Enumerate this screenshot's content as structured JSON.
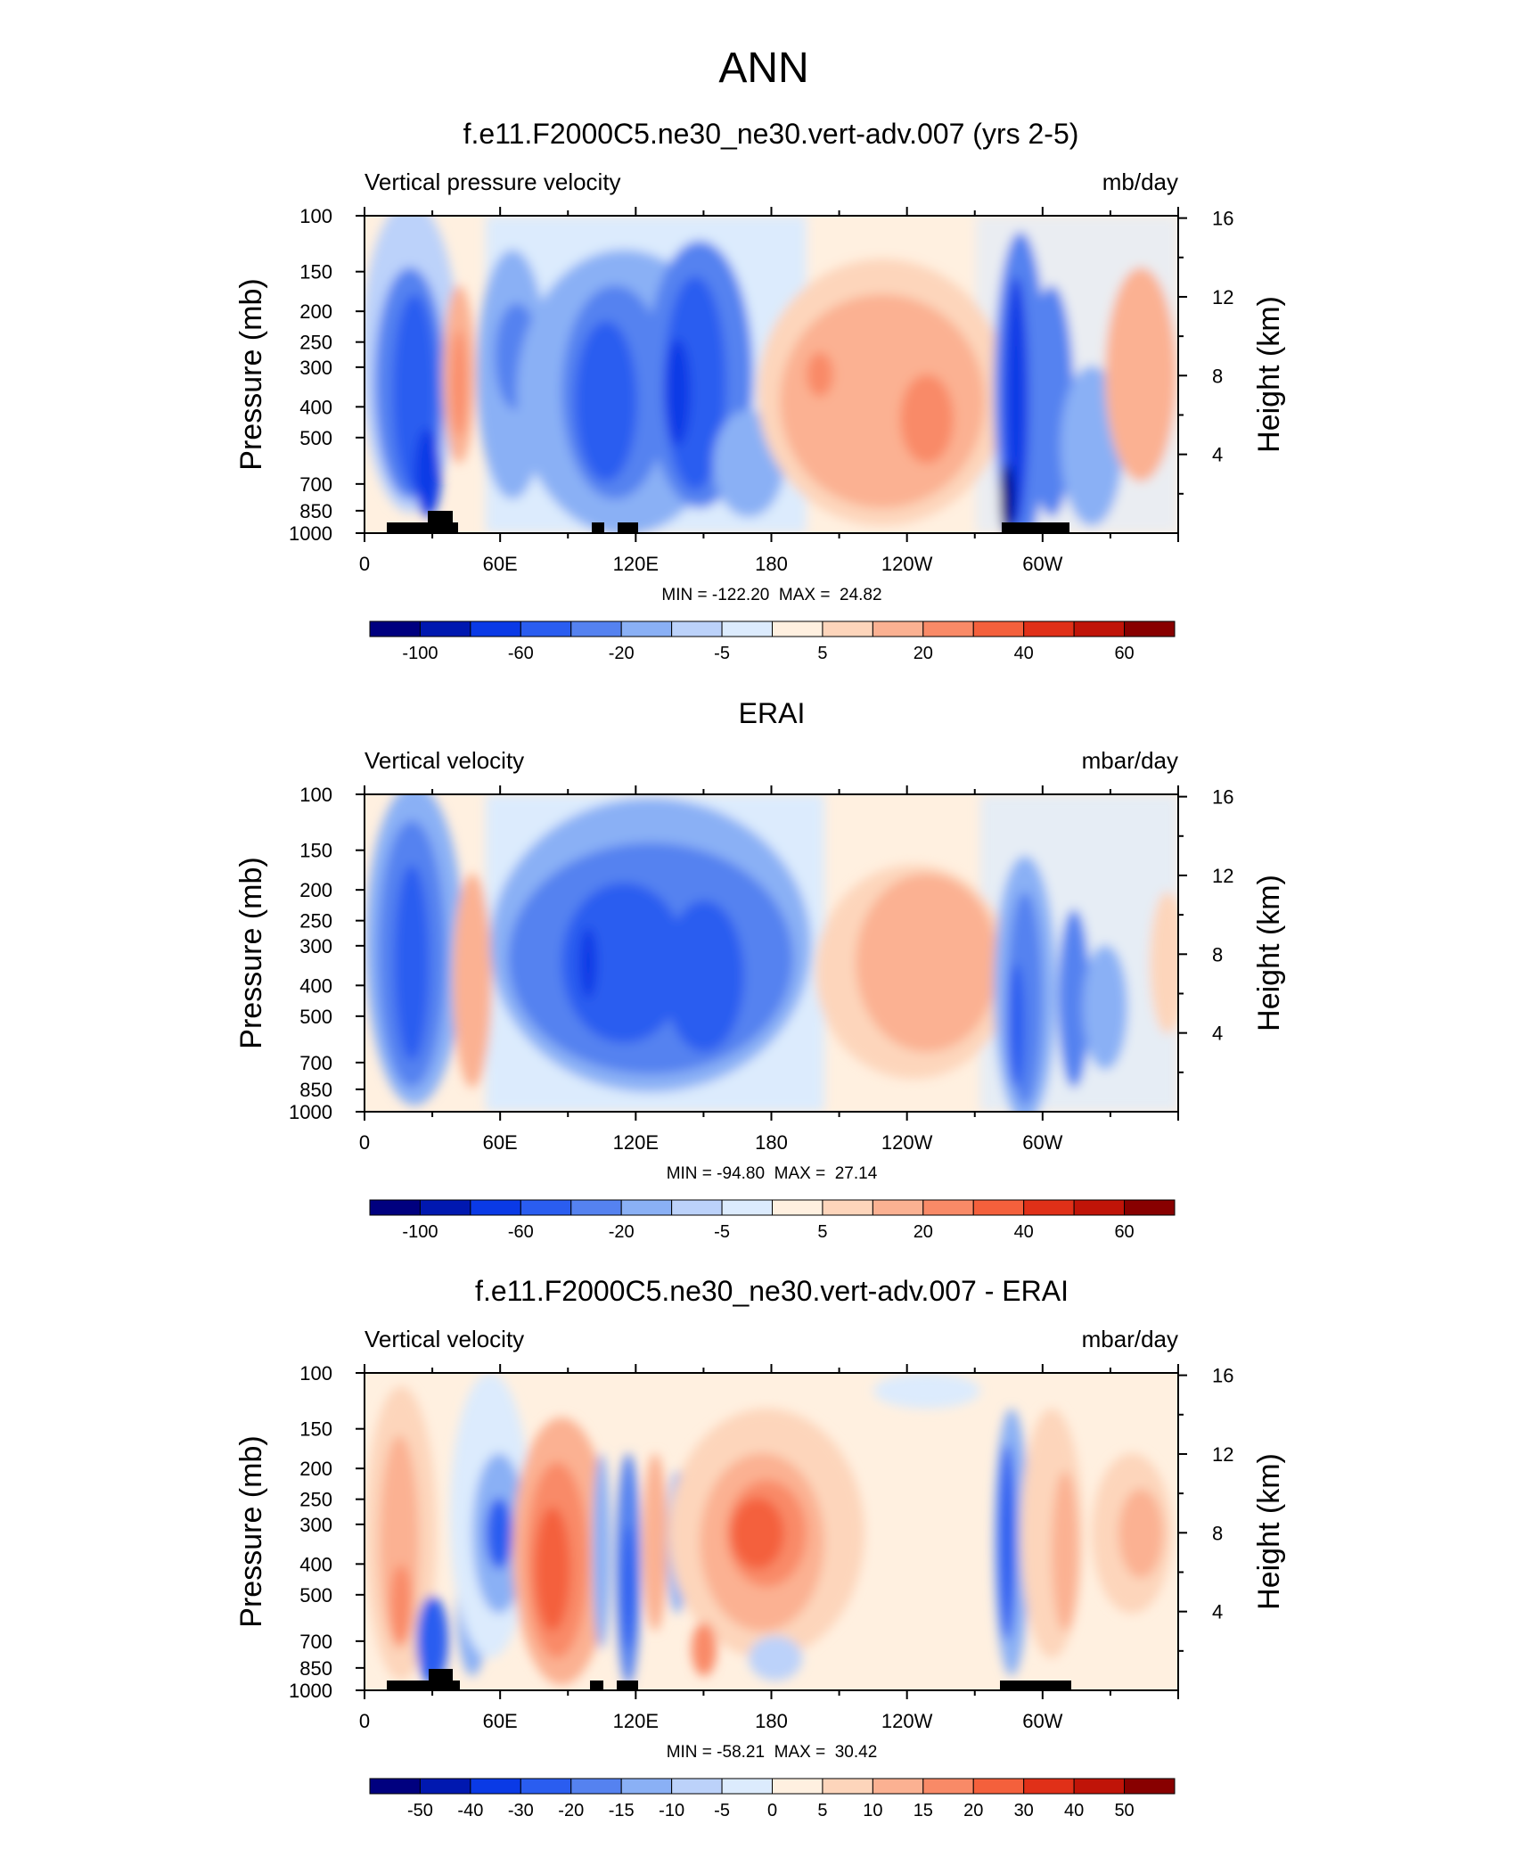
{
  "figure": {
    "title": "ANN"
  },
  "chart_data": [
    {
      "type": "heatmap",
      "title": "f.e11.F2000C5.ne30_ne30.vert-adv.007 (yrs 2-5)",
      "left_label": "Vertical pressure velocity",
      "right_label": "mb/day",
      "ylabel": "Pressure (mb)",
      "ylabel_right": "Height (km)",
      "x_ticks": [
        "0",
        "60E",
        "120E",
        "180",
        "120W",
        "60W"
      ],
      "y_ticks": [
        "100",
        "150",
        "200",
        "250",
        "300",
        "400",
        "500",
        "700",
        "850",
        "1000"
      ],
      "y_right_ticks": [
        "16",
        "12",
        "8",
        "4"
      ],
      "stats": "MIN = -122.20  MAX =  24.82",
      "colorbar_labels": [
        "-100",
        "-60",
        "-20",
        "-5",
        "5",
        "20",
        "40",
        "60"
      ],
      "colorbar_levels": [
        -100,
        -80,
        -60,
        -40,
        -20,
        -10,
        -5,
        0,
        5,
        10,
        20,
        30,
        40,
        50,
        60
      ],
      "land_mask": true
    },
    {
      "type": "heatmap",
      "title": "ERAI",
      "left_label": "Vertical velocity",
      "right_label": "mbar/day",
      "ylabel": "Pressure (mb)",
      "ylabel_right": "Height (km)",
      "x_ticks": [
        "0",
        "60E",
        "120E",
        "180",
        "120W",
        "60W"
      ],
      "y_ticks": [
        "100",
        "150",
        "200",
        "250",
        "300",
        "400",
        "500",
        "700",
        "850",
        "1000"
      ],
      "y_right_ticks": [
        "16",
        "12",
        "8",
        "4"
      ],
      "stats": "MIN = -94.80  MAX =  27.14",
      "colorbar_labels": [
        "-100",
        "-60",
        "-20",
        "-5",
        "5",
        "20",
        "40",
        "60"
      ],
      "colorbar_levels": [
        -100,
        -80,
        -60,
        -40,
        -20,
        -10,
        -5,
        0,
        5,
        10,
        20,
        30,
        40,
        50,
        60
      ],
      "land_mask": false
    },
    {
      "type": "heatmap",
      "title": "f.e11.F2000C5.ne30_ne30.vert-adv.007 - ERAI",
      "left_label": "Vertical velocity",
      "right_label": "mbar/day",
      "ylabel": "Pressure (mb)",
      "ylabel_right": "Height (km)",
      "x_ticks": [
        "0",
        "60E",
        "120E",
        "180",
        "120W",
        "60W"
      ],
      "y_ticks": [
        "100",
        "150",
        "200",
        "250",
        "300",
        "400",
        "500",
        "700",
        "850",
        "1000"
      ],
      "y_right_ticks": [
        "16",
        "12",
        "8",
        "4"
      ],
      "stats": "MIN = -58.21  MAX =  30.42",
      "colorbar_labels": [
        "-50",
        "-40",
        "-30",
        "-20",
        "-15",
        "-10",
        "-5",
        "0",
        "5",
        "10",
        "15",
        "20",
        "30",
        "40",
        "50"
      ],
      "colorbar_levels": [
        -50,
        -40,
        -30,
        -20,
        -15,
        -10,
        -5,
        0,
        5,
        10,
        15,
        20,
        30,
        40,
        50
      ],
      "land_mask": true
    }
  ],
  "colors": {
    "colorbar": [
      "#00007f",
      "#0018b0",
      "#0a3ae6",
      "#2a5df0",
      "#5582f0",
      "#8ab0f5",
      "#bcd2fa",
      "#dcebfd",
      "#fff0e0",
      "#fdd5bb",
      "#fbb192",
      "#f98a67",
      "#f4603c",
      "#e03018",
      "#c01408",
      "#880000"
    ]
  }
}
